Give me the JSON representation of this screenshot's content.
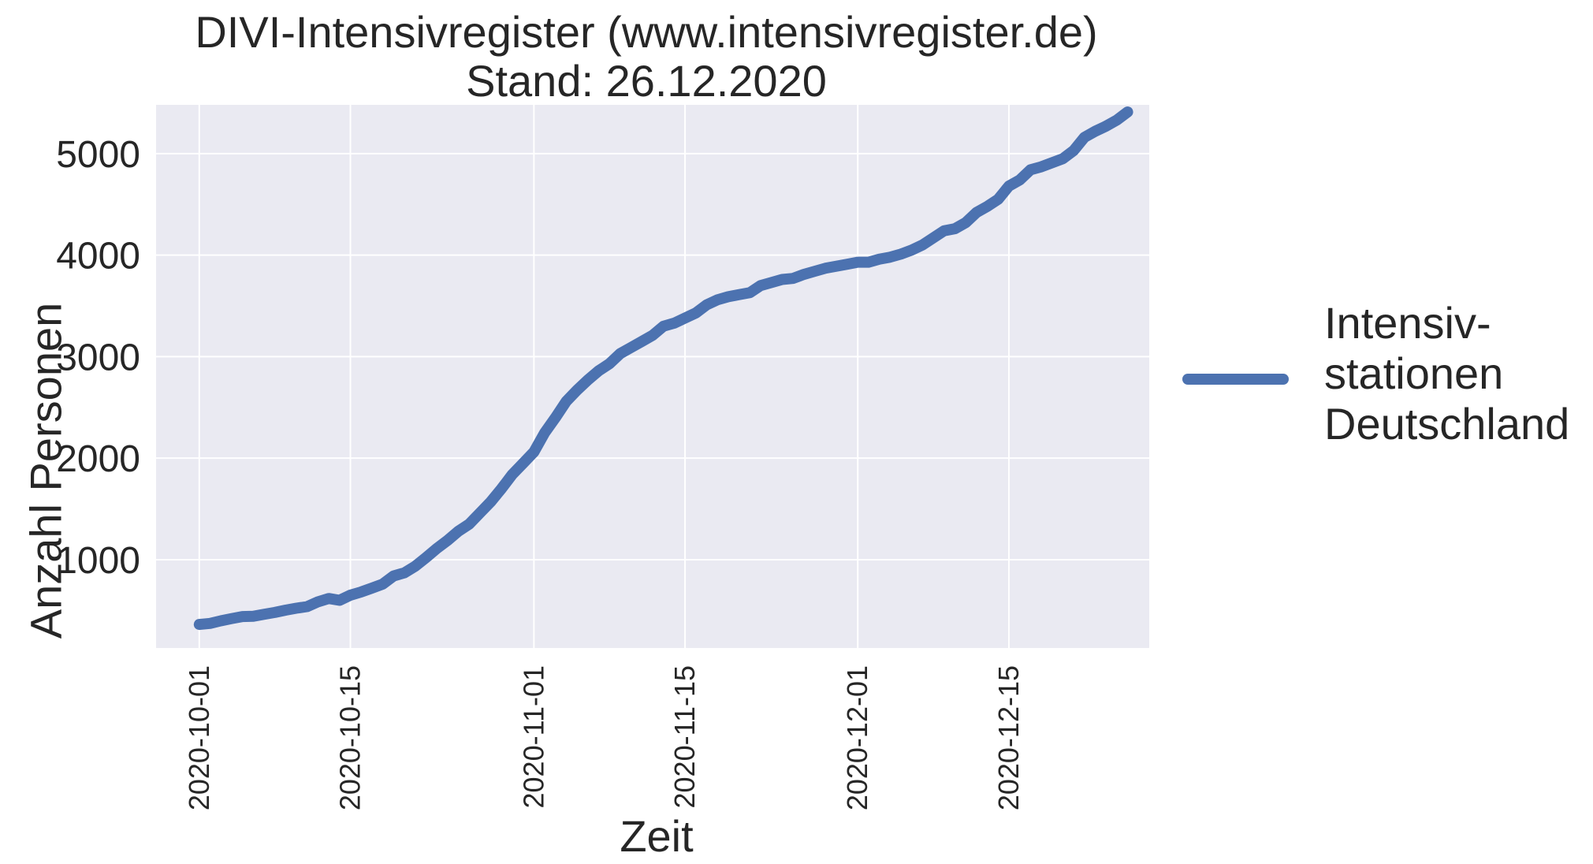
{
  "chart_data": {
    "type": "line",
    "title": "DIVI-Intensivregister (www.intensivregister.de)",
    "subtitle": "Stand: 26.12.2020",
    "xlabel": "Zeit",
    "ylabel": "Anzahl Personen",
    "x_ticks": [
      "2020-10-01",
      "2020-10-15",
      "2020-11-01",
      "2020-11-15",
      "2020-12-01",
      "2020-12-15"
    ],
    "y_ticks": [
      1000,
      2000,
      3000,
      4000,
      5000
    ],
    "xlim": [
      "2020-09-27",
      "2020-12-28"
    ],
    "ylim": [
      130,
      5480
    ],
    "grid": true,
    "background": "#eaeaf2",
    "legend": {
      "position": "right",
      "entries": [
        [
          "Intensiv-",
          "stationen",
          "Deutschland"
        ]
      ]
    },
    "series": [
      {
        "name": "Intensiv-stationen Deutschland",
        "color": "#4c72b0",
        "x": [
          "2020-10-01",
          "2020-10-02",
          "2020-10-03",
          "2020-10-04",
          "2020-10-05",
          "2020-10-06",
          "2020-10-07",
          "2020-10-08",
          "2020-10-09",
          "2020-10-10",
          "2020-10-11",
          "2020-10-12",
          "2020-10-13",
          "2020-10-14",
          "2020-10-15",
          "2020-10-16",
          "2020-10-17",
          "2020-10-18",
          "2020-10-19",
          "2020-10-20",
          "2020-10-21",
          "2020-10-22",
          "2020-10-23",
          "2020-10-24",
          "2020-10-25",
          "2020-10-26",
          "2020-10-27",
          "2020-10-28",
          "2020-10-29",
          "2020-10-30",
          "2020-10-31",
          "2020-11-01",
          "2020-11-02",
          "2020-11-03",
          "2020-11-04",
          "2020-11-05",
          "2020-11-06",
          "2020-11-07",
          "2020-11-08",
          "2020-11-09",
          "2020-11-10",
          "2020-11-11",
          "2020-11-12",
          "2020-11-13",
          "2020-11-14",
          "2020-11-15",
          "2020-11-16",
          "2020-11-17",
          "2020-11-18",
          "2020-11-19",
          "2020-11-20",
          "2020-11-21",
          "2020-11-22",
          "2020-11-23",
          "2020-11-24",
          "2020-11-25",
          "2020-11-26",
          "2020-11-27",
          "2020-11-28",
          "2020-11-29",
          "2020-11-30",
          "2020-12-01",
          "2020-12-02",
          "2020-12-03",
          "2020-12-04",
          "2020-12-05",
          "2020-12-06",
          "2020-12-07",
          "2020-12-08",
          "2020-12-09",
          "2020-12-10",
          "2020-12-11",
          "2020-12-12",
          "2020-12-13",
          "2020-12-14",
          "2020-12-15",
          "2020-12-16",
          "2020-12-17",
          "2020-12-18",
          "2020-12-19",
          "2020-12-20",
          "2020-12-21",
          "2020-12-22",
          "2020-12-23",
          "2020-12-24",
          "2020-12-25",
          "2020-12-26"
        ],
        "values": [
          362,
          372,
          398,
          420,
          440,
          442,
          462,
          480,
          503,
          522,
          538,
          585,
          618,
          600,
          650,
          682,
          720,
          760,
          840,
          870,
          935,
          1020,
          1110,
          1190,
          1280,
          1350,
          1460,
          1570,
          1700,
          1840,
          1950,
          2060,
          2250,
          2400,
          2560,
          2670,
          2770,
          2860,
          2930,
          3030,
          3090,
          3150,
          3210,
          3300,
          3330,
          3380,
          3430,
          3510,
          3560,
          3590,
          3610,
          3630,
          3700,
          3730,
          3760,
          3770,
          3810,
          3840,
          3870,
          3890,
          3910,
          3930,
          3930,
          3960,
          3980,
          4010,
          4050,
          4100,
          4170,
          4240,
          4260,
          4320,
          4420,
          4480,
          4550,
          4680,
          4740,
          4840,
          4870,
          4910,
          4950,
          5030,
          5160,
          5220,
          5270,
          5330,
          5410
        ]
      }
    ]
  }
}
